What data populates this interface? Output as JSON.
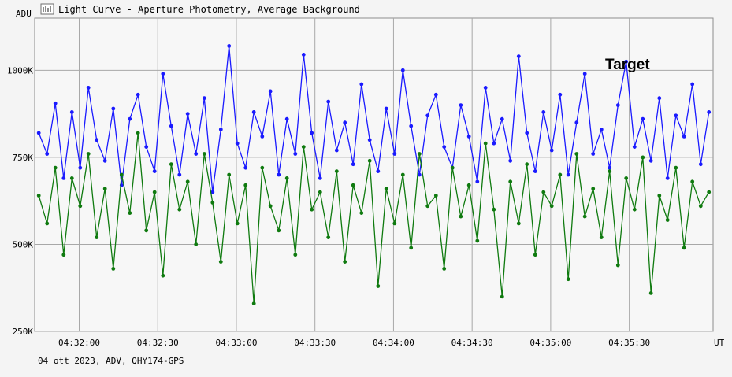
{
  "window": {
    "title": "Light Curve - Aperture Photometry, Average Background",
    "icon": "light-curve-chart-icon"
  },
  "footer": {
    "caption": "04 ott 2023, ADV, QHY174-GPS"
  },
  "chart_data": {
    "type": "line",
    "title": "Light Curve - Aperture Photometry, Average Background",
    "ylabel": "ADU",
    "xlabel": "UT",
    "annotation": "Target",
    "ylim": [
      250000,
      1150000
    ],
    "yticks": [
      {
        "value": 250000,
        "label": "250K"
      },
      {
        "value": 500000,
        "label": "500K"
      },
      {
        "value": 750000,
        "label": "750K"
      },
      {
        "value": 1000000,
        "label": "1000K"
      }
    ],
    "xlim": [
      "04:31:43",
      "04:36:02"
    ],
    "xticks": [
      "04:32:00",
      "04:32:30",
      "04:33:00",
      "04:33:30",
      "04:34:00",
      "04:34:30",
      "04:35:00",
      "04:35:30"
    ],
    "grid": true,
    "background_color": "#f4f4f4",
    "plot_background": "#f7f7f7",
    "series": [
      {
        "color": "#1a1aff",
        "values": [
          820000,
          760000,
          905000,
          690000,
          880000,
          720000,
          950000,
          800000,
          740000,
          890000,
          670000,
          860000,
          930000,
          780000,
          710000,
          990000,
          840000,
          700000,
          875000,
          760000,
          920000,
          650000,
          830000,
          1070000,
          790000,
          720000,
          880000,
          810000,
          940000,
          700000,
          860000,
          760000,
          1045000,
          820000,
          690000,
          910000,
          770000,
          850000,
          730000,
          960000,
          800000,
          710000,
          890000,
          760000,
          1000000,
          840000,
          700000,
          870000,
          930000,
          780000,
          720000,
          900000,
          810000,
          680000,
          950000,
          790000,
          860000,
          740000,
          1040000,
          820000,
          710000,
          880000,
          770000,
          930000,
          700000,
          850000,
          990000,
          760000,
          830000,
          720000,
          900000,
          1025000,
          780000,
          860000,
          740000,
          920000,
          690000,
          870000,
          810000,
          960000,
          730000,
          880000
        ]
      },
      {
        "color": "#0f7a0f",
        "values": [
          640000,
          560000,
          720000,
          470000,
          690000,
          610000,
          760000,
          520000,
          660000,
          430000,
          700000,
          590000,
          820000,
          540000,
          650000,
          410000,
          730000,
          600000,
          680000,
          500000,
          760000,
          620000,
          450000,
          700000,
          560000,
          670000,
          330000,
          720000,
          610000,
          540000,
          690000,
          470000,
          780000,
          600000,
          650000,
          520000,
          710000,
          450000,
          670000,
          590000,
          740000,
          380000,
          660000,
          560000,
          700000,
          490000,
          760000,
          610000,
          640000,
          430000,
          720000,
          580000,
          670000,
          510000,
          790000,
          600000,
          350000,
          680000,
          560000,
          730000,
          470000,
          650000,
          610000,
          700000,
          400000,
          760000,
          580000,
          660000,
          520000,
          710000,
          440000,
          690000,
          600000,
          750000,
          360000,
          640000,
          570000,
          720000,
          490000,
          680000,
          610000,
          650000
        ]
      }
    ]
  }
}
